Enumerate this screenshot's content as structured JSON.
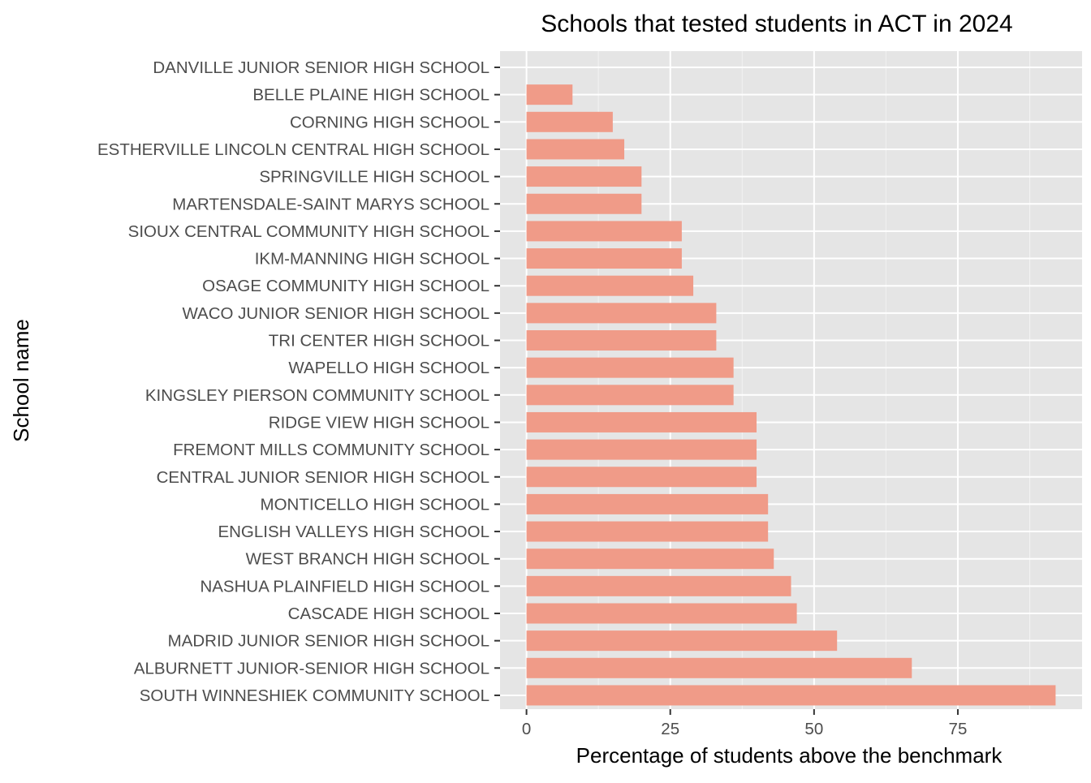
{
  "chart_data": {
    "type": "bar",
    "orientation": "horizontal",
    "title": "Schools that tested students in ACT in 2024",
    "xlabel": "Percentage of students above the benchmark",
    "ylabel": "School name",
    "xlim": [
      -4.6,
      96.6
    ],
    "xticks": [
      0,
      25,
      50,
      75
    ],
    "grid": true,
    "legend": "none",
    "bar_color": "#f09b88",
    "panel_color": "#e5e5e5",
    "categories": [
      "DANVILLE JUNIOR SENIOR HIGH SCHOOL",
      "BELLE PLAINE HIGH SCHOOL",
      "CORNING HIGH SCHOOL",
      "ESTHERVILLE LINCOLN CENTRAL HIGH SCHOOL",
      "SPRINGVILLE HIGH SCHOOL",
      "MARTENSDALE-SAINT MARYS SCHOOL",
      "SIOUX CENTRAL COMMUNITY HIGH SCHOOL",
      "IKM-MANNING HIGH SCHOOL",
      "OSAGE COMMUNITY HIGH SCHOOL",
      "WACO JUNIOR SENIOR HIGH SCHOOL",
      "TRI CENTER HIGH SCHOOL",
      "WAPELLO HIGH SCHOOL",
      "KINGSLEY PIERSON COMMUNITY SCHOOL",
      "RIDGE VIEW HIGH SCHOOL",
      "FREMONT MILLS COMMUNITY SCHOOL",
      "CENTRAL JUNIOR SENIOR HIGH SCHOOL",
      "MONTICELLO HIGH SCHOOL",
      "ENGLISH VALLEYS HIGH SCHOOL",
      "WEST BRANCH HIGH SCHOOL",
      "NASHUA PLAINFIELD HIGH SCHOOL",
      "CASCADE HIGH SCHOOL",
      "MADRID JUNIOR SENIOR HIGH SCHOOL",
      "ALBURNETT JUNIOR-SENIOR HIGH SCHOOL",
      "SOUTH WINNESHIEK COMMUNITY SCHOOL"
    ],
    "values": [
      0,
      8,
      15,
      17,
      20,
      20,
      27,
      27,
      29,
      33,
      33,
      36,
      36,
      40,
      40,
      40,
      42,
      42,
      43,
      46,
      47,
      54,
      67,
      92
    ]
  }
}
